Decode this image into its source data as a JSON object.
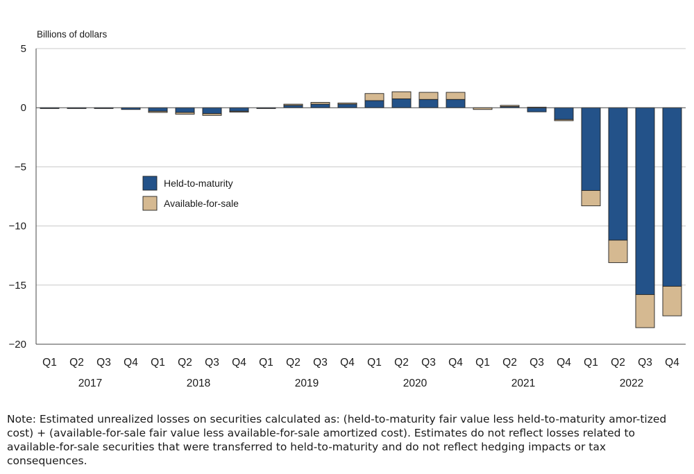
{
  "chart_data": {
    "type": "bar",
    "stacked": true,
    "ylabel": "Billions of dollars",
    "ylim": [
      -20,
      5
    ],
    "yticks": [
      5,
      0,
      -5,
      -10,
      -15,
      -20
    ],
    "grid": true,
    "legend_position": "center-left",
    "categories": [
      "Q1",
      "Q2",
      "Q3",
      "Q4",
      "Q1",
      "Q2",
      "Q3",
      "Q4",
      "Q1",
      "Q2",
      "Q3",
      "Q4",
      "Q1",
      "Q2",
      "Q3",
      "Q4",
      "Q1",
      "Q2",
      "Q3",
      "Q4",
      "Q1",
      "Q2",
      "Q3",
      "Q4"
    ],
    "years": [
      "2017",
      "2018",
      "2019",
      "2020",
      "2021",
      "2022"
    ],
    "series": [
      {
        "name": "Held-to-maturity",
        "color": "#235289",
        "values": [
          -0.05,
          -0.05,
          -0.05,
          -0.15,
          -0.3,
          -0.4,
          -0.5,
          -0.3,
          -0.05,
          0.2,
          0.3,
          0.3,
          0.6,
          0.75,
          0.7,
          0.7,
          0.0,
          0.1,
          -0.35,
          -1.0,
          -7.0,
          -11.2,
          -15.8,
          -15.1
        ]
      },
      {
        "name": "Available-for-sale",
        "color": "#d5b991",
        "values": [
          0.0,
          0.0,
          0.0,
          0.0,
          -0.1,
          -0.15,
          -0.15,
          -0.05,
          0.0,
          0.1,
          0.15,
          0.1,
          0.6,
          0.6,
          0.6,
          0.6,
          -0.15,
          0.1,
          0.05,
          -0.1,
          -1.3,
          -1.9,
          -2.8,
          -2.5
        ]
      }
    ]
  },
  "note": "Note: Estimated unrealized losses on securities calculated as: (held-to-maturity fair value less held-to-maturity amor-tized cost) + (available-for-sale fair value less available-for-sale amortized cost). Estimates do not reflect losses related to available-for-sale securities that were transferred to held-to-maturity and do not reflect hedging impacts or tax consequences."
}
